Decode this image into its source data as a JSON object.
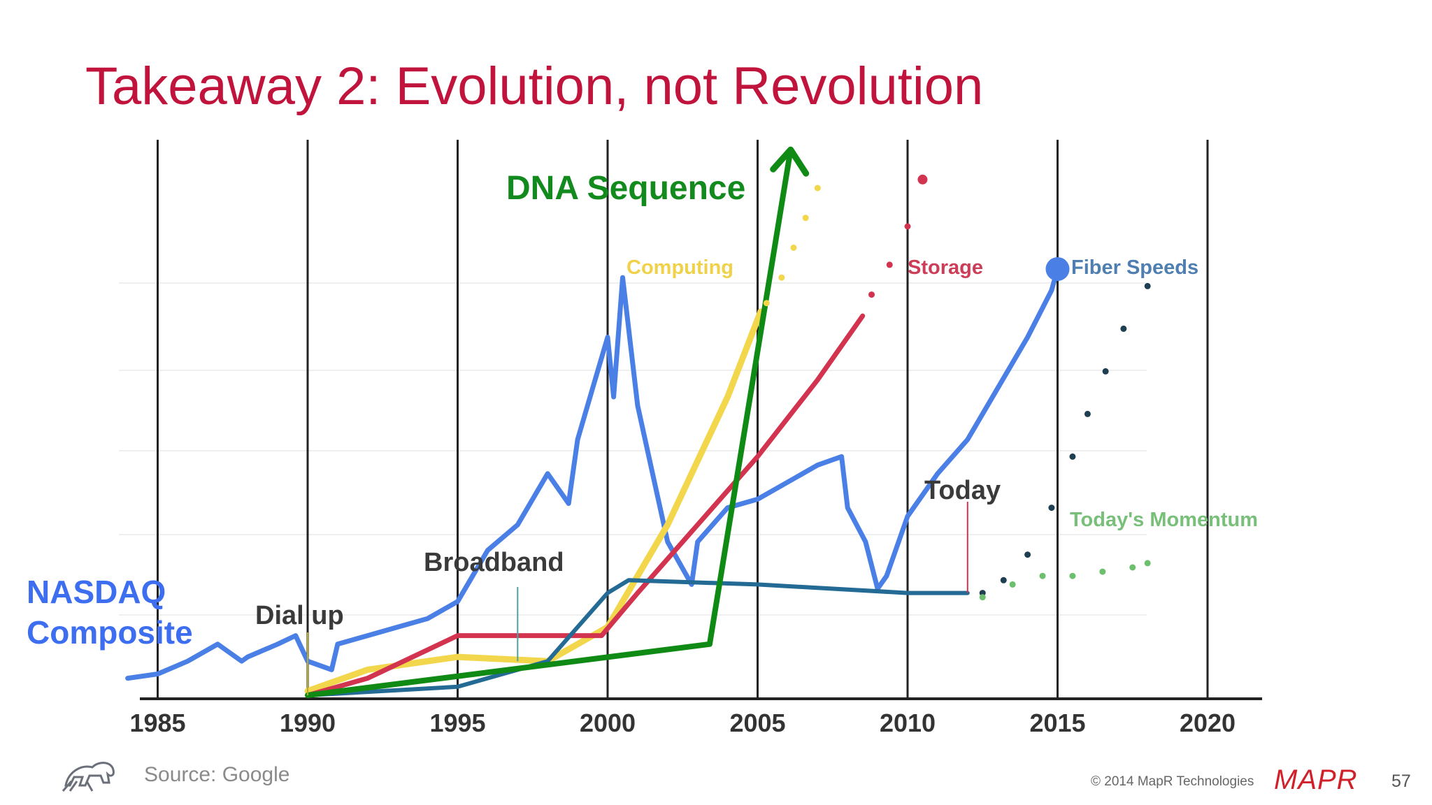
{
  "slide": {
    "title": "Takeaway 2: Evolution, not Revolution",
    "nasdaq_label_line1": "NASDAQ",
    "nasdaq_label_line2": "Composite",
    "dna_label": "DNA Sequence",
    "source": "Source: Google",
    "copyright": "© 2014 MapR Technologies",
    "brand": "MAPR",
    "page_number": "57",
    "logo_icon": "elephant-icon"
  },
  "chart_data": {
    "type": "line",
    "x_ticks": [
      "1985",
      "1990",
      "1995",
      "2000",
      "2005",
      "2010",
      "2015",
      "2020"
    ],
    "xlim": [
      1980.5,
      2022.5
    ],
    "grid": true,
    "colors": {
      "nasdaq": "#4a7fe6",
      "computing": "#f2d64b",
      "storage": "#d2344f",
      "fiber": "#236a94",
      "dna": "#0f8a14",
      "momentum": "#6cbf6c"
    },
    "series_labels": {
      "computing": "Computing",
      "storage": "Storage",
      "fiber": "Fiber Speeds",
      "momentum": "Today's Momentum"
    },
    "annotations": {
      "dialup": "Dial up",
      "broadband": "Broadband",
      "today": "Today"
    },
    "series": [
      {
        "name": "NASDAQ Composite",
        "key": "nasdaq",
        "x": [
          1984,
          1985,
          1986,
          1987,
          1987.8,
          1988,
          1989,
          1989.6,
          1990,
          1990.8,
          1991,
          1992,
          1993,
          1994,
          1995,
          1996,
          1997,
          1998,
          1998.7,
          1999,
          1999.5,
          2000,
          2000.2,
          2000.5,
          2001,
          2001.5,
          2002,
          2002.8,
          2003,
          2004,
          2005,
          2006,
          2007,
          2007.8,
          2008,
          2008.6,
          2009,
          2009.3,
          2010,
          2011,
          2012,
          2013,
          2014,
          2014.8,
          2015
        ],
        "y": [
          4,
          5,
          8,
          12,
          8,
          9,
          12,
          14,
          8,
          6,
          12,
          14,
          16,
          18,
          22,
          34,
          40,
          52,
          45,
          60,
          72,
          84,
          70,
          98,
          68,
          52,
          36,
          26,
          36,
          44,
          46,
          50,
          54,
          56,
          44,
          36,
          25,
          28,
          42,
          52,
          60,
          72,
          84,
          95,
          100
        ]
      },
      {
        "name": "Computing",
        "key": "computing",
        "x": [
          1990,
          1992,
          1995,
          1998,
          2000,
          2002,
          2004,
          2005.1
        ],
        "y": [
          1,
          6,
          9,
          8,
          16,
          40,
          70,
          90
        ]
      },
      {
        "name": "Storage",
        "key": "storage",
        "x": [
          1990,
          1992,
          1995,
          1999.8,
          2001,
          2003,
          2005,
          2007,
          2008.5
        ],
        "y": [
          0,
          4,
          14,
          14,
          24,
          40,
          56,
          74,
          89
        ]
      },
      {
        "name": "Fiber Speeds",
        "key": "fiber",
        "x": [
          1990,
          1995,
          1998,
          2000,
          2000.7,
          2005,
          2010,
          2012
        ],
        "y": [
          0,
          2,
          8,
          24,
          27,
          26,
          24,
          24
        ]
      },
      {
        "name": "DNA Sequence",
        "key": "dna",
        "x": [
          1990,
          2003.4,
          2006.1
        ],
        "y": [
          0,
          12,
          128
        ]
      }
    ],
    "projections": [
      {
        "key": "computing",
        "x": [
          2005.3,
          2005.8,
          2006.2,
          2006.6,
          2007
        ],
        "y": [
          92,
          98,
          105,
          112,
          119
        ]
      },
      {
        "key": "storage",
        "x": [
          2008.8,
          2009.4,
          2010,
          2010.5
        ],
        "y": [
          94,
          101,
          110,
          121
        ]
      },
      {
        "key": "fiber",
        "x": [
          2012.5,
          2013.2,
          2014,
          2014.8,
          2015.5,
          2016,
          2016.6,
          2017.2,
          2018
        ],
        "y": [
          24,
          27,
          33,
          44,
          56,
          66,
          76,
          86,
          96
        ]
      },
      {
        "key": "momentum",
        "x": [
          2012.5,
          2013.5,
          2014.5,
          2015.5,
          2016.5,
          2017.5,
          2018
        ],
        "y": [
          23,
          26,
          28,
          28,
          29,
          30,
          31
        ]
      }
    ],
    "today_x": 2012
  }
}
